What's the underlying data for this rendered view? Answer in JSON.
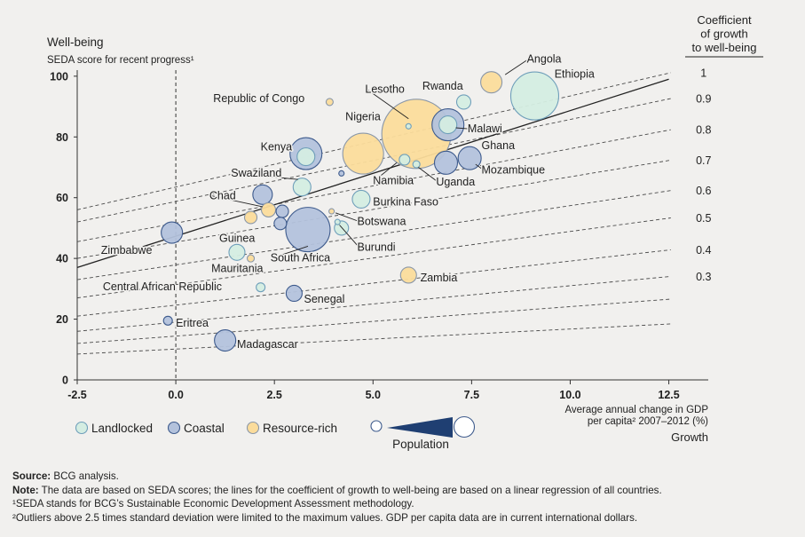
{
  "chart_data": {
    "type": "scatter",
    "title": "Well-being",
    "subtitle": "SEDA score for recent progress¹",
    "ylabel": "Well-being",
    "xlabel": "Average annual change in GDP per capita² 2007–2012 (%)",
    "x_axis_title": "Growth",
    "x_axis_label_lines": [
      "Average annual change in GDP",
      "per capita² 2007–2012 (%)"
    ],
    "xlim": [
      -2.5,
      13.5
    ],
    "ylim": [
      0,
      102
    ],
    "x_ticks": [
      -2.5,
      0.0,
      2.5,
      5.0,
      7.5,
      10.0,
      12.5
    ],
    "x_tick_labels": [
      "-2.5",
      "0.0",
      "2.5",
      "5.0",
      "7.5",
      "10.0",
      "12.5"
    ],
    "y_ticks": [
      0,
      20,
      40,
      60,
      80,
      100
    ],
    "y_tick_labels": [
      "0",
      "20",
      "40",
      "60",
      "80",
      "100"
    ],
    "coef_title_lines": [
      "Coefficient",
      "of growth",
      "to well-being"
    ],
    "coefficient_lines": [
      {
        "coef": 1,
        "label": "1",
        "y_at_minus25": 56,
        "slope": 3.0
      },
      {
        "coef": 0.9,
        "label": "0.9",
        "y_at_minus25": 52,
        "slope": 2.7
      },
      {
        "coef": 0.8,
        "label": "0.8",
        "y_at_minus25": 45.5,
        "slope": 2.45
      },
      {
        "coef": 0.7,
        "label": "0.7",
        "y_at_minus25": 40,
        "slope": 2.15
      },
      {
        "coef": 0.6,
        "label": "0.6",
        "y_at_minus25": 33,
        "slope": 1.95
      },
      {
        "coef": 0.5,
        "label": "0.5",
        "y_at_minus25": 27,
        "slope": 1.75
      },
      {
        "coef": 0.4,
        "label": "0.4",
        "y_at_minus25": 21,
        "slope": 1.45
      },
      {
        "coef": 0.3,
        "label": "0.3",
        "y_at_minus25": 16,
        "slope": 1.2
      },
      {
        "coef": null,
        "label": "",
        "y_at_minus25": 12,
        "slope": 0.97
      },
      {
        "coef": null,
        "label": "",
        "y_at_minus25": 8.5,
        "slope": 0.66
      }
    ],
    "regression_line": {
      "x": [
        -2.5,
        12.5
      ],
      "y": [
        37,
        99
      ]
    },
    "categories": {
      "landlocked": {
        "label": "Landlocked",
        "fill": "#d4ede2",
        "stroke": "#6f9fba"
      },
      "coastal": {
        "label": "Coastal",
        "fill": "#b3c2dc",
        "stroke": "#3d5a8c"
      },
      "resource": {
        "label": "Resource-rich",
        "fill": "#fbdc9b",
        "stroke": "#8a97a8"
      }
    },
    "population_legend_label": "Population",
    "points": [
      {
        "name": "Angola",
        "x": 8.0,
        "y": 98,
        "size": 12,
        "cat": "resource"
      },
      {
        "name": "Ethiopia",
        "x": 9.1,
        "y": 93.5,
        "size": 27,
        "cat": "landlocked"
      },
      {
        "name": "Rwanda",
        "x": 7.3,
        "y": 91.5,
        "size": 8,
        "cat": "landlocked"
      },
      {
        "name": "Republic of Congo",
        "x": 3.9,
        "y": 91.5,
        "size": 4,
        "cat": "resource"
      },
      {
        "name": "Lesotho",
        "x": 5.9,
        "y": 83.5,
        "size": 3,
        "cat": "landlocked"
      },
      {
        "name": "Nigeria",
        "x": 6.1,
        "y": 81,
        "size": 39,
        "cat": "resource"
      },
      {
        "name": "Malawi",
        "x": 6.9,
        "y": 84,
        "size": 10,
        "cat": "landlocked"
      },
      {
        "name": "Malawi (coastal ring)",
        "x": 6.9,
        "y": 84,
        "size": 18,
        "cat": "coastal",
        "nolabel": true
      },
      {
        "name": "Kenya",
        "x": 3.3,
        "y": 74.5,
        "size": 18,
        "cat": "coastal"
      },
      {
        "name": "Kenya (inner)",
        "x": 3.3,
        "y": 73.5,
        "size": 10,
        "cat": "landlocked",
        "nolabel": true
      },
      {
        "name": "Nigeria (left)",
        "x": 4.75,
        "y": 74.5,
        "size": 23,
        "cat": "resource",
        "nolabel": true
      },
      {
        "name": "Ghana",
        "x": 7.45,
        "y": 73,
        "size": 13,
        "cat": "coastal"
      },
      {
        "name": "Mozambique",
        "x": 6.85,
        "y": 71.5,
        "size": 13,
        "cat": "coastal"
      },
      {
        "name": "Namibia",
        "x": 5.8,
        "y": 72.5,
        "size": 6,
        "cat": "landlocked"
      },
      {
        "name": "Uganda",
        "x": 6.1,
        "y": 71,
        "size": 4,
        "cat": "landlocked"
      },
      {
        "name": "Swaziland",
        "x": 4.2,
        "y": 68,
        "size": 3,
        "cat": "coastal"
      },
      {
        "name": "Swaziland (left)",
        "x": 3.2,
        "y": 63.5,
        "size": 10,
        "cat": "landlocked",
        "nolabel": true
      },
      {
        "name": "Burkina Faso",
        "x": 4.7,
        "y": 59.5,
        "size": 10,
        "cat": "landlocked"
      },
      {
        "name": "Chad",
        "x": 2.2,
        "y": 61,
        "size": 11,
        "cat": "coastal"
      },
      {
        "name": "Chad (resource)",
        "x": 2.35,
        "y": 56,
        "size": 8,
        "cat": "resource",
        "nolabel": true
      },
      {
        "name": "Chad (right)",
        "x": 2.7,
        "y": 55.5,
        "size": 7,
        "cat": "coastal",
        "nolabel": true
      },
      {
        "name": "Chad (resource2)",
        "x": 1.9,
        "y": 53.5,
        "size": 7,
        "cat": "resource",
        "nolabel": true
      },
      {
        "name": "Chad (coastal2)",
        "x": 2.65,
        "y": 51.5,
        "size": 7,
        "cat": "coastal",
        "nolabel": true
      },
      {
        "name": "Botswana",
        "x": 3.95,
        "y": 55.5,
        "size": 3,
        "cat": "resource"
      },
      {
        "name": "Burundi",
        "x": 4.1,
        "y": 52,
        "size": 3,
        "cat": "landlocked"
      },
      {
        "name": "Burkina Faso (small)",
        "x": 4.2,
        "y": 50,
        "size": 8,
        "cat": "landlocked",
        "nolabel": true
      },
      {
        "name": "South Africa",
        "x": 3.35,
        "y": 49.5,
        "size": 25,
        "cat": "coastal"
      },
      {
        "name": "Zimbabwe",
        "x": -0.1,
        "y": 48.5,
        "size": 12,
        "cat": "coastal"
      },
      {
        "name": "Guinea",
        "x": 1.55,
        "y": 42,
        "size": 9,
        "cat": "landlocked"
      },
      {
        "name": "Mauritania",
        "x": 1.9,
        "y": 40,
        "size": 4,
        "cat": "resource"
      },
      {
        "name": "Zambia",
        "x": 5.9,
        "y": 34.5,
        "size": 9,
        "cat": "resource"
      },
      {
        "name": "Central African Republic",
        "x": 2.15,
        "y": 30.5,
        "size": 5,
        "cat": "landlocked"
      },
      {
        "name": "Senegal",
        "x": 3.0,
        "y": 28.5,
        "size": 9,
        "cat": "coastal"
      },
      {
        "name": "Eritrea",
        "x": -0.2,
        "y": 19.5,
        "size": 5,
        "cat": "coastal"
      },
      {
        "name": "Madagascar",
        "x": 1.25,
        "y": 13,
        "size": 12,
        "cat": "coastal"
      }
    ],
    "labels": [
      {
        "text": "Angola",
        "x": 8.9,
        "y": 104.5,
        "lx": 8.35,
        "ly": 100.5
      },
      {
        "text": "Ethiopia",
        "x": 9.6,
        "y": 99.5
      },
      {
        "text": "Rwanda",
        "x": 6.25,
        "y": 95.5
      },
      {
        "text": "Republic of Congo",
        "x": 0.95,
        "y": 91.5
      },
      {
        "text": "Lesotho",
        "x": 4.8,
        "y": 94.5,
        "lx": 5.9,
        "ly": 86
      },
      {
        "text": "Nigeria",
        "x": 4.3,
        "y": 85.5
      },
      {
        "text": "Malawi",
        "x": 7.4,
        "y": 81.5,
        "lx": 7.1,
        "ly": 83
      },
      {
        "text": "Kenya",
        "x": 2.15,
        "y": 75.5
      },
      {
        "text": "Ghana",
        "x": 7.75,
        "y": 76
      },
      {
        "text": "Mozambique",
        "x": 7.75,
        "y": 68,
        "lx": 7.6,
        "ly": 71
      },
      {
        "text": "Namibia",
        "x": 5.0,
        "y": 64.5,
        "lx": 5.6,
        "ly": 71.5
      },
      {
        "text": "Uganda",
        "x": 6.6,
        "y": 64,
        "lx": 6.15,
        "ly": 70
      },
      {
        "text": "Swaziland",
        "x": 1.4,
        "y": 67,
        "lx": 3.1,
        "ly": 66
      },
      {
        "text": "Burkina Faso",
        "x": 5.0,
        "y": 57.5
      },
      {
        "text": "Chad",
        "x": 0.85,
        "y": 59.5,
        "lx": 2.2,
        "ly": 57
      },
      {
        "text": "Botswana",
        "x": 4.6,
        "y": 51,
        "lx": 4.05,
        "ly": 55
      },
      {
        "text": "Burundi",
        "x": 4.6,
        "y": 42.5,
        "lx": 4.15,
        "ly": 51
      },
      {
        "text": "South Africa",
        "x": 2.4,
        "y": 39,
        "lx": 3.35,
        "ly": 44
      },
      {
        "text": "Zimbabwe",
        "x": -0.6,
        "y": 41.5,
        "anchor": "end"
      },
      {
        "text": "Guinea",
        "x": 1.1,
        "y": 45.5
      },
      {
        "text": "Mauritania",
        "x": 0.9,
        "y": 35.5
      },
      {
        "text": "Zambia",
        "x": 6.2,
        "y": 32.5
      },
      {
        "text": "Central African Republic",
        "x": -1.85,
        "y": 29.5
      },
      {
        "text": "Senegal",
        "x": 3.25,
        "y": 25.5
      },
      {
        "text": "Eritrea",
        "x": 0.0,
        "y": 17.5
      },
      {
        "text": "Madagascar",
        "x": 1.55,
        "y": 10.5
      }
    ]
  },
  "legend": {
    "landlocked": "Landlocked",
    "coastal": "Coastal",
    "resource": "Resource-rich",
    "population": "Population"
  },
  "footer": {
    "source_label": "Source:",
    "source_text": "BCG analysis.",
    "note_label": "Note:",
    "note_text": "The data are based on SEDA scores; the lines for the coefficient of growth to well-being are based on a linear regression of all countries.",
    "footnote1": "¹SEDA stands for BCG’s Sustainable Economic Development Assessment methodology.",
    "footnote2": "²Outliers above 2.5 times standard deviation were limited to the maximum values. GDP per capita data are in current international dollars."
  }
}
